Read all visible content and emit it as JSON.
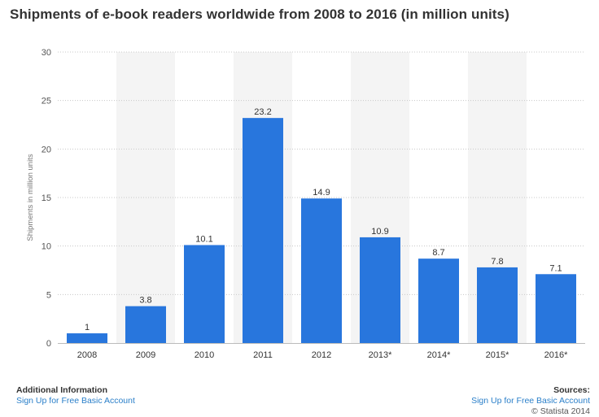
{
  "chart_data": {
    "type": "bar",
    "title": "Shipments of e-book readers worldwide from 2008 to 2016 (in million units)",
    "xlabel": "",
    "ylabel": "Shipments in million units",
    "categories": [
      "2008",
      "2009",
      "2010",
      "2011",
      "2012",
      "2013*",
      "2014*",
      "2015*",
      "2016*"
    ],
    "values": [
      1,
      3.8,
      10.1,
      23.2,
      14.9,
      10.9,
      8.7,
      7.8,
      7.1
    ],
    "value_labels": [
      "1",
      "3.8",
      "10.1",
      "23.2",
      "14.9",
      "10.9",
      "8.7",
      "7.8",
      "7.1"
    ],
    "ylim": [
      0,
      30
    ],
    "yticks": [
      0,
      5,
      10,
      15,
      20,
      25,
      30
    ],
    "grid": true,
    "legend": "none",
    "bar_color": "#2876dd",
    "band_color": "#f4f4f4"
  },
  "footer": {
    "additional_info": "Additional Information",
    "signup_left": "Sign Up for Free Basic Account",
    "sources": "Sources:",
    "signup_right": "Sign Up for Free Basic Account",
    "copyright": "© Statista 2014"
  }
}
